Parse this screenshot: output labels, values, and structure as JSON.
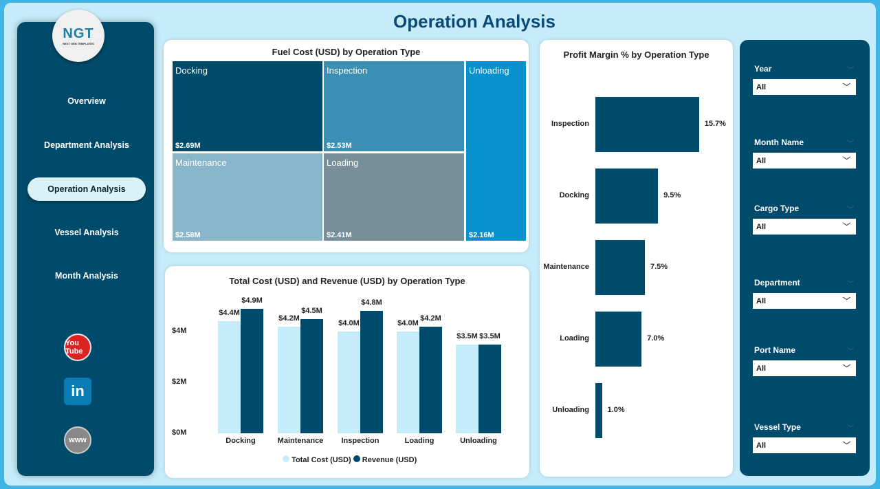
{
  "header": {
    "title": "Operation Analysis"
  },
  "logo": {
    "text": "NGT",
    "subtitle": "NEXT GEN TEMPLATES"
  },
  "nav": [
    {
      "label": "Overview",
      "active": false
    },
    {
      "label": "Department Analysis",
      "active": false
    },
    {
      "label": "Operation Analysis",
      "active": true
    },
    {
      "label": "Vessel Analysis",
      "active": false
    },
    {
      "label": "Month Analysis",
      "active": false
    }
  ],
  "social": [
    {
      "icon": "youtube-icon",
      "label": "You Tube"
    },
    {
      "icon": "linkedin-icon",
      "label": "in"
    },
    {
      "icon": "globe-icon",
      "label": "www"
    }
  ],
  "treemap": {
    "title": "Fuel Cost (USD) by Operation Type",
    "items": [
      {
        "name": "Docking",
        "value": "$2.69M",
        "color": "#004b6b"
      },
      {
        "name": "Inspection",
        "value": "$2.53M",
        "color": "#3a8fb5"
      },
      {
        "name": "Unloading",
        "value": "$2.16M",
        "color": "#0891cc"
      },
      {
        "name": "Maintenance",
        "value": "$2.58M",
        "color": "#88b5c9"
      },
      {
        "name": "Loading",
        "value": "$2.41M",
        "color": "#778f98"
      }
    ]
  },
  "chart_data": [
    {
      "type": "bar",
      "title": "Total Cost (USD) and Revenue (USD) by Operation Type",
      "categories": [
        "Docking",
        "Maintenance",
        "Inspection",
        "Loading",
        "Unloading"
      ],
      "series": [
        {
          "name": "Total Cost (USD)",
          "color": "#c4ecfa",
          "values": [
            4.4,
            4.2,
            4.0,
            4.0,
            3.5
          ],
          "labels": [
            "$4.4M",
            "$4.2M",
            "$4.0M",
            "$4.0M",
            "$3.5M"
          ]
        },
        {
          "name": "Revenue (USD)",
          "color": "#004b6b",
          "values": [
            4.9,
            4.5,
            4.8,
            4.2,
            3.5
          ],
          "labels": [
            "$4.9M",
            "$4.5M",
            "$4.8M",
            "$4.2M",
            "$3.5M"
          ]
        }
      ],
      "yticks": [
        "$0M",
        "$2M",
        "$4M"
      ],
      "ytick_values": [
        0,
        2,
        4
      ],
      "legend": "bottom"
    },
    {
      "type": "bar",
      "orientation": "horizontal",
      "title": "Profit Margin % by Operation Type",
      "categories": [
        "Inspection",
        "Docking",
        "Maintenance",
        "Loading",
        "Unloading"
      ],
      "values": [
        15.7,
        9.5,
        7.5,
        7.0,
        1.0
      ],
      "labels": [
        "15.7%",
        "9.5%",
        "7.5%",
        "7.0%",
        "1.0%"
      ],
      "color": "#004b6b"
    }
  ],
  "filters": [
    {
      "label": "Year",
      "value": "All"
    },
    {
      "label": "Month Name",
      "value": "All"
    },
    {
      "label": "Cargo Type",
      "value": "All"
    },
    {
      "label": "Department",
      "value": "All"
    },
    {
      "label": "Port Name",
      "value": "All"
    },
    {
      "label": "Vessel Type",
      "value": "All"
    }
  ]
}
